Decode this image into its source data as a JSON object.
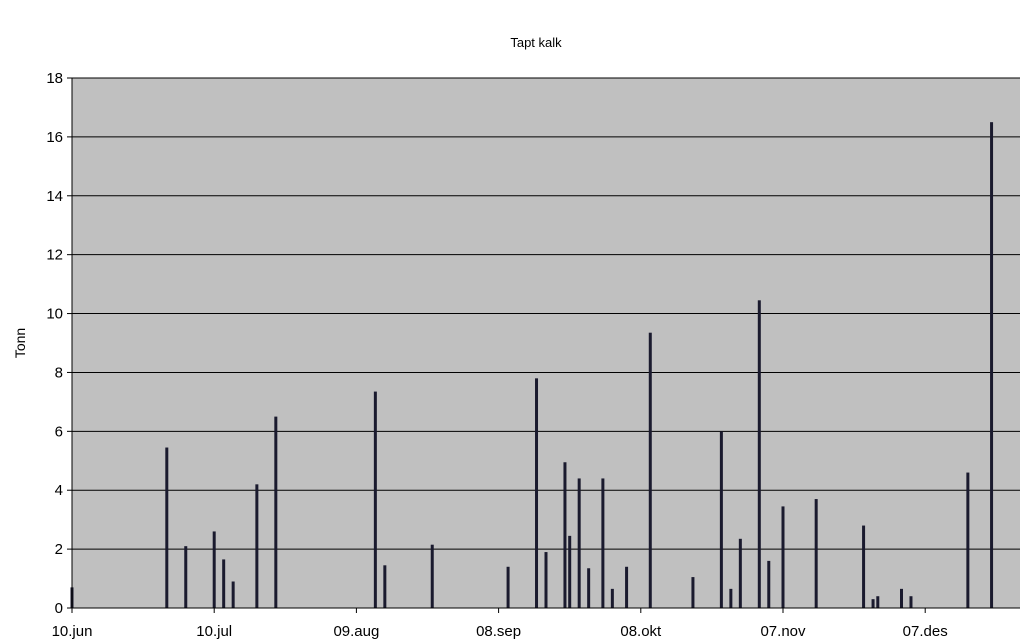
{
  "chart_data": {
    "type": "bar",
    "title": "Tapt kalk",
    "ylabel": "Tonn",
    "xlabel": "",
    "ylim": [
      0,
      18
    ],
    "yticks": [
      0,
      2,
      4,
      6,
      8,
      10,
      12,
      14,
      16,
      18
    ],
    "xlim": [
      "2009-06-10",
      "2009-12-27"
    ],
    "xticks": [
      {
        "date": "2009-06-10",
        "label": "10.jun"
      },
      {
        "date": "2009-07-10",
        "label": "10.jul"
      },
      {
        "date": "2009-08-09",
        "label": "09.aug"
      },
      {
        "date": "2009-09-08",
        "label": "08.sep"
      },
      {
        "date": "2009-10-08",
        "label": "08.okt"
      },
      {
        "date": "2009-11-07",
        "label": "07.nov"
      },
      {
        "date": "2009-12-07",
        "label": "07.des"
      }
    ],
    "grid": true,
    "colors": {
      "plot_background": "#c0c0c0",
      "bar": "#1a1a2e",
      "gridline": "#000000"
    },
    "points": [
      {
        "x": "2009-06-10",
        "y": 0.7
      },
      {
        "x": "2009-06-30",
        "y": 5.45
      },
      {
        "x": "2009-07-04",
        "y": 2.1
      },
      {
        "x": "2009-07-10",
        "y": 2.6
      },
      {
        "x": "2009-07-12",
        "y": 1.65
      },
      {
        "x": "2009-07-14",
        "y": 0.9
      },
      {
        "x": "2009-07-19",
        "y": 4.2
      },
      {
        "x": "2009-07-23",
        "y": 6.5
      },
      {
        "x": "2009-08-13",
        "y": 7.35
      },
      {
        "x": "2009-08-15",
        "y": 1.45
      },
      {
        "x": "2009-08-25",
        "y": 2.15
      },
      {
        "x": "2009-09-10",
        "y": 1.4
      },
      {
        "x": "2009-09-16",
        "y": 7.8
      },
      {
        "x": "2009-09-18",
        "y": 1.9
      },
      {
        "x": "2009-09-22",
        "y": 4.95
      },
      {
        "x": "2009-09-23",
        "y": 2.45
      },
      {
        "x": "2009-09-25",
        "y": 4.4
      },
      {
        "x": "2009-09-27",
        "y": 1.35
      },
      {
        "x": "2009-09-30",
        "y": 4.4
      },
      {
        "x": "2009-10-02",
        "y": 0.65
      },
      {
        "x": "2009-10-05",
        "y": 1.4
      },
      {
        "x": "2009-10-10",
        "y": 9.35
      },
      {
        "x": "2009-10-19",
        "y": 1.05
      },
      {
        "x": "2009-10-25",
        "y": 6.0
      },
      {
        "x": "2009-10-27",
        "y": 0.65
      },
      {
        "x": "2009-10-29",
        "y": 2.35
      },
      {
        "x": "2009-11-02",
        "y": 10.45
      },
      {
        "x": "2009-11-04",
        "y": 1.6
      },
      {
        "x": "2009-11-07",
        "y": 3.45
      },
      {
        "x": "2009-11-14",
        "y": 3.7
      },
      {
        "x": "2009-11-24",
        "y": 2.8
      },
      {
        "x": "2009-11-26",
        "y": 0.3
      },
      {
        "x": "2009-11-27",
        "y": 0.4
      },
      {
        "x": "2009-12-02",
        "y": 0.65
      },
      {
        "x": "2009-12-04",
        "y": 0.4
      },
      {
        "x": "2009-12-16",
        "y": 4.6
      },
      {
        "x": "2009-12-21",
        "y": 16.5
      }
    ]
  }
}
